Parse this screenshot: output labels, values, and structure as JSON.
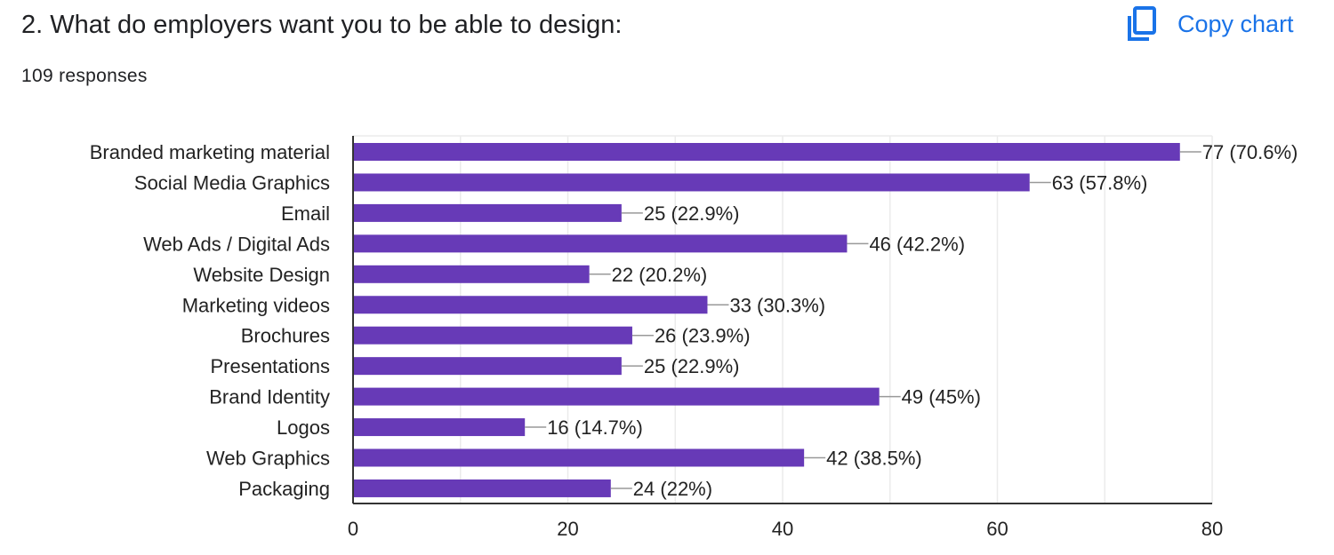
{
  "header": {
    "title": "2. What do employers want you to be able to design:",
    "responses": "109 responses",
    "copy_label": "Copy chart",
    "copy_icon": "copy-icon"
  },
  "colors": {
    "bar": "#673ab7",
    "accent": "#1a73e8",
    "grid": "#ebebeb"
  },
  "chart_data": {
    "type": "bar",
    "orientation": "horizontal",
    "categories": [
      "Branded marketing material",
      "Social Media Graphics",
      "Email",
      "Web Ads / Digital Ads",
      "Website Design",
      "Marketing videos",
      "Brochures",
      "Presentations",
      "Brand Identity",
      "Logos",
      "Web Graphics",
      "Packaging"
    ],
    "values": [
      77,
      63,
      25,
      46,
      22,
      33,
      26,
      25,
      49,
      16,
      42,
      24
    ],
    "data_labels": [
      "77 (70.6%)",
      "63 (57.8%)",
      "25 (22.9%)",
      "46 (42.2%)",
      "22 (20.2%)",
      "33 (30.3%)",
      "26 (23.9%)",
      "25 (22.9%)",
      "49 (45%)",
      "16 (14.7%)",
      "42 (38.5%)",
      "24 (22%)"
    ],
    "xlim": [
      0,
      80
    ],
    "x_ticks": [
      "0",
      "20",
      "40",
      "60",
      "80"
    ],
    "grid": true,
    "legend": "none"
  }
}
